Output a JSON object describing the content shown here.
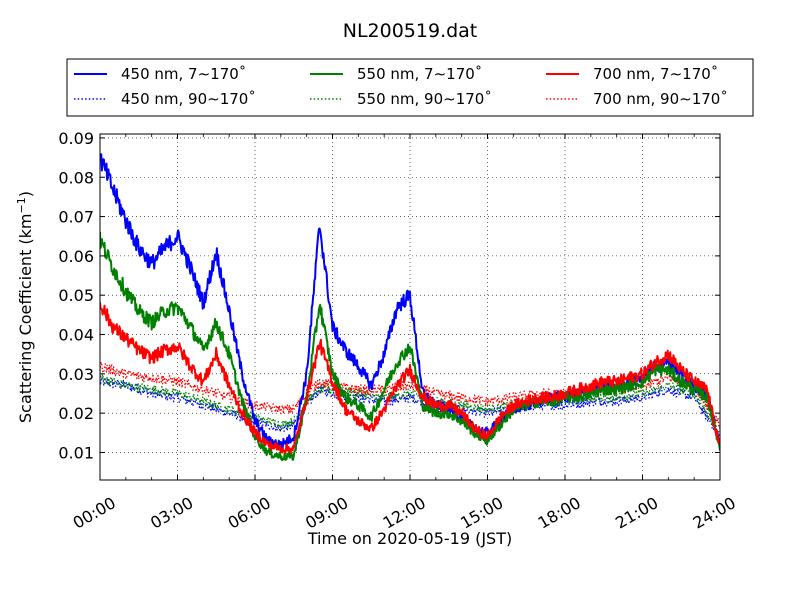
{
  "chart_data": {
    "type": "line",
    "title": "NL200519.dat",
    "xlabel": "Time on 2020-05-19 (JST)",
    "ylabel": "Scattering Coefficient (km",
    "ylabel_sup": "−1",
    "ylabel_close": ")",
    "x_unit": "hours",
    "xlim": [
      0,
      24
    ],
    "ylim": [
      0.003,
      0.091
    ],
    "grid": true,
    "legend_placement": "top-center outside",
    "xticks": [
      0,
      3,
      6,
      9,
      12,
      15,
      18,
      21,
      24
    ],
    "xtick_labels": [
      "00:00",
      "03:00",
      "06:00",
      "09:00",
      "12:00",
      "15:00",
      "18:00",
      "21:00",
      "24:00"
    ],
    "yticks": [
      0.01,
      0.02,
      0.03,
      0.04,
      0.05,
      0.06,
      0.07,
      0.08,
      0.09
    ],
    "ytick_labels": [
      "0.01",
      "0.02",
      "0.03",
      "0.04",
      "0.05",
      "0.06",
      "0.07",
      "0.08",
      "0.09"
    ],
    "series": [
      {
        "name": "450 nm, 7∼170˚",
        "color": "#0000ff",
        "style": "solid",
        "x": [
          0,
          0.5,
          1,
          1.5,
          2,
          2.5,
          3,
          3.5,
          4,
          4.5,
          5,
          5.5,
          6,
          6.5,
          7,
          7.5,
          8,
          8.5,
          9,
          9.5,
          10,
          10.5,
          11,
          11.5,
          12,
          12.5,
          13,
          13.5,
          14,
          14.5,
          15,
          15.5,
          16,
          16.5,
          17,
          17.5,
          18,
          18.5,
          19,
          19.5,
          20,
          20.5,
          21,
          21.5,
          22,
          22.5,
          23,
          23.5,
          24
        ],
        "y": [
          0.085,
          0.077,
          0.069,
          0.062,
          0.058,
          0.062,
          0.065,
          0.057,
          0.048,
          0.061,
          0.046,
          0.03,
          0.018,
          0.013,
          0.012,
          0.014,
          0.03,
          0.068,
          0.042,
          0.036,
          0.032,
          0.027,
          0.035,
          0.047,
          0.05,
          0.025,
          0.022,
          0.021,
          0.019,
          0.016,
          0.015,
          0.018,
          0.021,
          0.022,
          0.023,
          0.024,
          0.024,
          0.025,
          0.026,
          0.027,
          0.027,
          0.028,
          0.029,
          0.032,
          0.033,
          0.03,
          0.027,
          0.025,
          0.012
        ]
      },
      {
        "name": "550 nm, 7∼170˚",
        "color": "#008000",
        "style": "solid",
        "x": [
          0,
          0.5,
          1,
          1.5,
          2,
          2.5,
          3,
          3.5,
          4,
          4.5,
          5,
          5.5,
          6,
          6.5,
          7,
          7.5,
          8,
          8.5,
          9,
          9.5,
          10,
          10.5,
          11,
          11.5,
          12,
          12.5,
          13,
          13.5,
          14,
          14.5,
          15,
          15.5,
          16,
          16.5,
          17,
          17.5,
          18,
          18.5,
          19,
          19.5,
          20,
          20.5,
          21,
          21.5,
          22,
          22.5,
          23,
          23.5,
          24
        ],
        "y": [
          0.064,
          0.057,
          0.051,
          0.046,
          0.043,
          0.046,
          0.047,
          0.042,
          0.036,
          0.043,
          0.035,
          0.023,
          0.014,
          0.01,
          0.009,
          0.009,
          0.024,
          0.048,
          0.03,
          0.024,
          0.022,
          0.019,
          0.026,
          0.033,
          0.037,
          0.022,
          0.02,
          0.02,
          0.018,
          0.015,
          0.013,
          0.017,
          0.021,
          0.022,
          0.023,
          0.023,
          0.024,
          0.024,
          0.025,
          0.026,
          0.026,
          0.027,
          0.028,
          0.031,
          0.031,
          0.028,
          0.026,
          0.024,
          0.011
        ]
      },
      {
        "name": "700 nm, 7∼170˚",
        "color": "#ff0000",
        "style": "solid",
        "x": [
          0,
          0.5,
          1,
          1.5,
          2,
          2.5,
          3,
          3.5,
          4,
          4.5,
          5,
          5.5,
          6,
          6.5,
          7,
          7.5,
          8,
          8.5,
          9,
          9.5,
          10,
          10.5,
          11,
          11.5,
          12,
          12.5,
          13,
          13.5,
          14,
          14.5,
          15,
          15.5,
          16,
          16.5,
          17,
          17.5,
          18,
          18.5,
          19,
          19.5,
          20,
          20.5,
          21,
          21.5,
          22,
          22.5,
          23,
          23.5,
          24
        ],
        "y": [
          0.048,
          0.042,
          0.039,
          0.036,
          0.034,
          0.036,
          0.037,
          0.032,
          0.028,
          0.035,
          0.027,
          0.02,
          0.015,
          0.012,
          0.011,
          0.011,
          0.024,
          0.038,
          0.028,
          0.021,
          0.018,
          0.016,
          0.021,
          0.027,
          0.031,
          0.024,
          0.022,
          0.022,
          0.02,
          0.016,
          0.014,
          0.019,
          0.022,
          0.023,
          0.024,
          0.024,
          0.025,
          0.026,
          0.027,
          0.028,
          0.028,
          0.029,
          0.03,
          0.033,
          0.035,
          0.031,
          0.028,
          0.026,
          0.011
        ]
      },
      {
        "name": "450 nm, 90∼170˚",
        "color": "#0000ff",
        "style": "dotted",
        "x": [
          0,
          1,
          2,
          3,
          4,
          5,
          6,
          7,
          7.5,
          8,
          8.5,
          9,
          10,
          11,
          12,
          13,
          14,
          15,
          16,
          17,
          18,
          19,
          20,
          21,
          22,
          23,
          24
        ],
        "y": [
          0.028,
          0.027,
          0.025,
          0.024,
          0.022,
          0.02,
          0.018,
          0.016,
          0.017,
          0.022,
          0.026,
          0.025,
          0.024,
          0.023,
          0.024,
          0.022,
          0.021,
          0.02,
          0.021,
          0.022,
          0.022,
          0.023,
          0.023,
          0.024,
          0.026,
          0.024,
          0.014
        ]
      },
      {
        "name": "550 nm, 90∼170˚",
        "color": "#008000",
        "style": "dotted",
        "x": [
          0,
          1,
          2,
          3,
          4,
          5,
          6,
          7,
          7.5,
          8,
          8.5,
          9,
          10,
          11,
          12,
          13,
          14,
          15,
          16,
          17,
          18,
          19,
          20,
          21,
          22,
          23,
          24
        ],
        "y": [
          0.029,
          0.027,
          0.026,
          0.025,
          0.023,
          0.021,
          0.019,
          0.017,
          0.018,
          0.023,
          0.026,
          0.026,
          0.025,
          0.024,
          0.025,
          0.023,
          0.022,
          0.021,
          0.022,
          0.023,
          0.023,
          0.024,
          0.024,
          0.025,
          0.027,
          0.025,
          0.015
        ]
      },
      {
        "name": "700 nm, 90∼170˚",
        "color": "#ff0000",
        "style": "dotted",
        "x": [
          0,
          1,
          2,
          3,
          4,
          5,
          6,
          7,
          7.5,
          8,
          8.5,
          9,
          10,
          11,
          12,
          13,
          14,
          15,
          16,
          17,
          18,
          19,
          20,
          21,
          22,
          23,
          24
        ],
        "y": [
          0.032,
          0.03,
          0.029,
          0.028,
          0.026,
          0.024,
          0.022,
          0.021,
          0.021,
          0.025,
          0.028,
          0.027,
          0.026,
          0.026,
          0.027,
          0.025,
          0.024,
          0.023,
          0.024,
          0.025,
          0.025,
          0.026,
          0.026,
          0.027,
          0.029,
          0.027,
          0.017
        ]
      }
    ]
  }
}
